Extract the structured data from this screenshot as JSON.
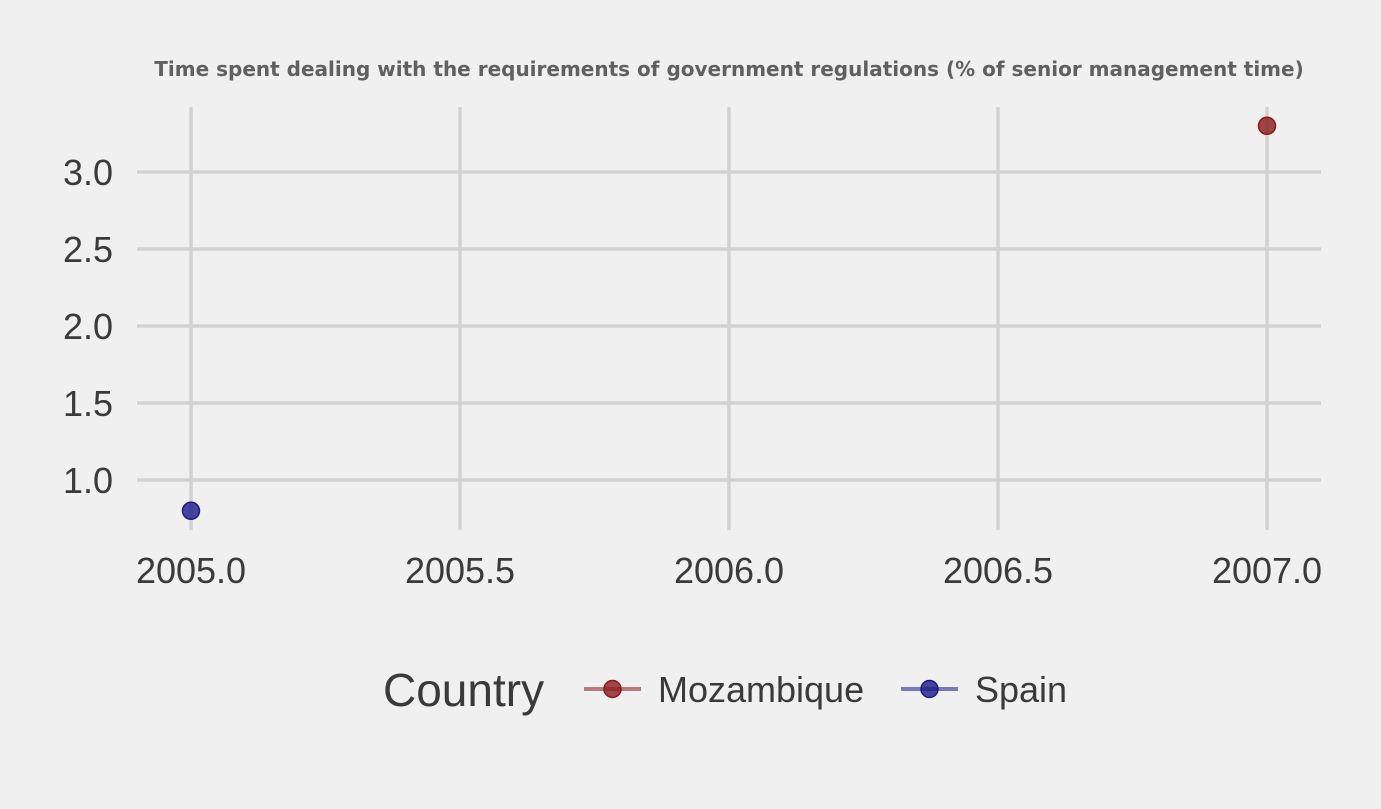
{
  "chart_data": {
    "type": "scatter",
    "title": "Time spent dealing with the requirements of government regulations (% of senior management time)",
    "xlabel": "",
    "ylabel": "",
    "x_ticks": [
      "2005.0",
      "2005.5",
      "2006.0",
      "2006.5",
      "2007.0"
    ],
    "y_ticks": [
      "1.0",
      "1.5",
      "2.0",
      "2.5",
      "3.0"
    ],
    "xlim": [
      2004.9,
      2007.1
    ],
    "ylim": [
      0.7,
      3.35
    ],
    "grid": true,
    "legend": {
      "title": "Country",
      "placement": "bottom",
      "entries": [
        "Mozambique",
        "Spain"
      ]
    },
    "series": [
      {
        "name": "Mozambique",
        "color": "#8b1a1a",
        "points": [
          {
            "x": 2007,
            "y": 3.3
          }
        ]
      },
      {
        "name": "Spain",
        "color": "#1a1a8b",
        "points": [
          {
            "x": 2005,
            "y": 0.8
          }
        ]
      }
    ]
  }
}
